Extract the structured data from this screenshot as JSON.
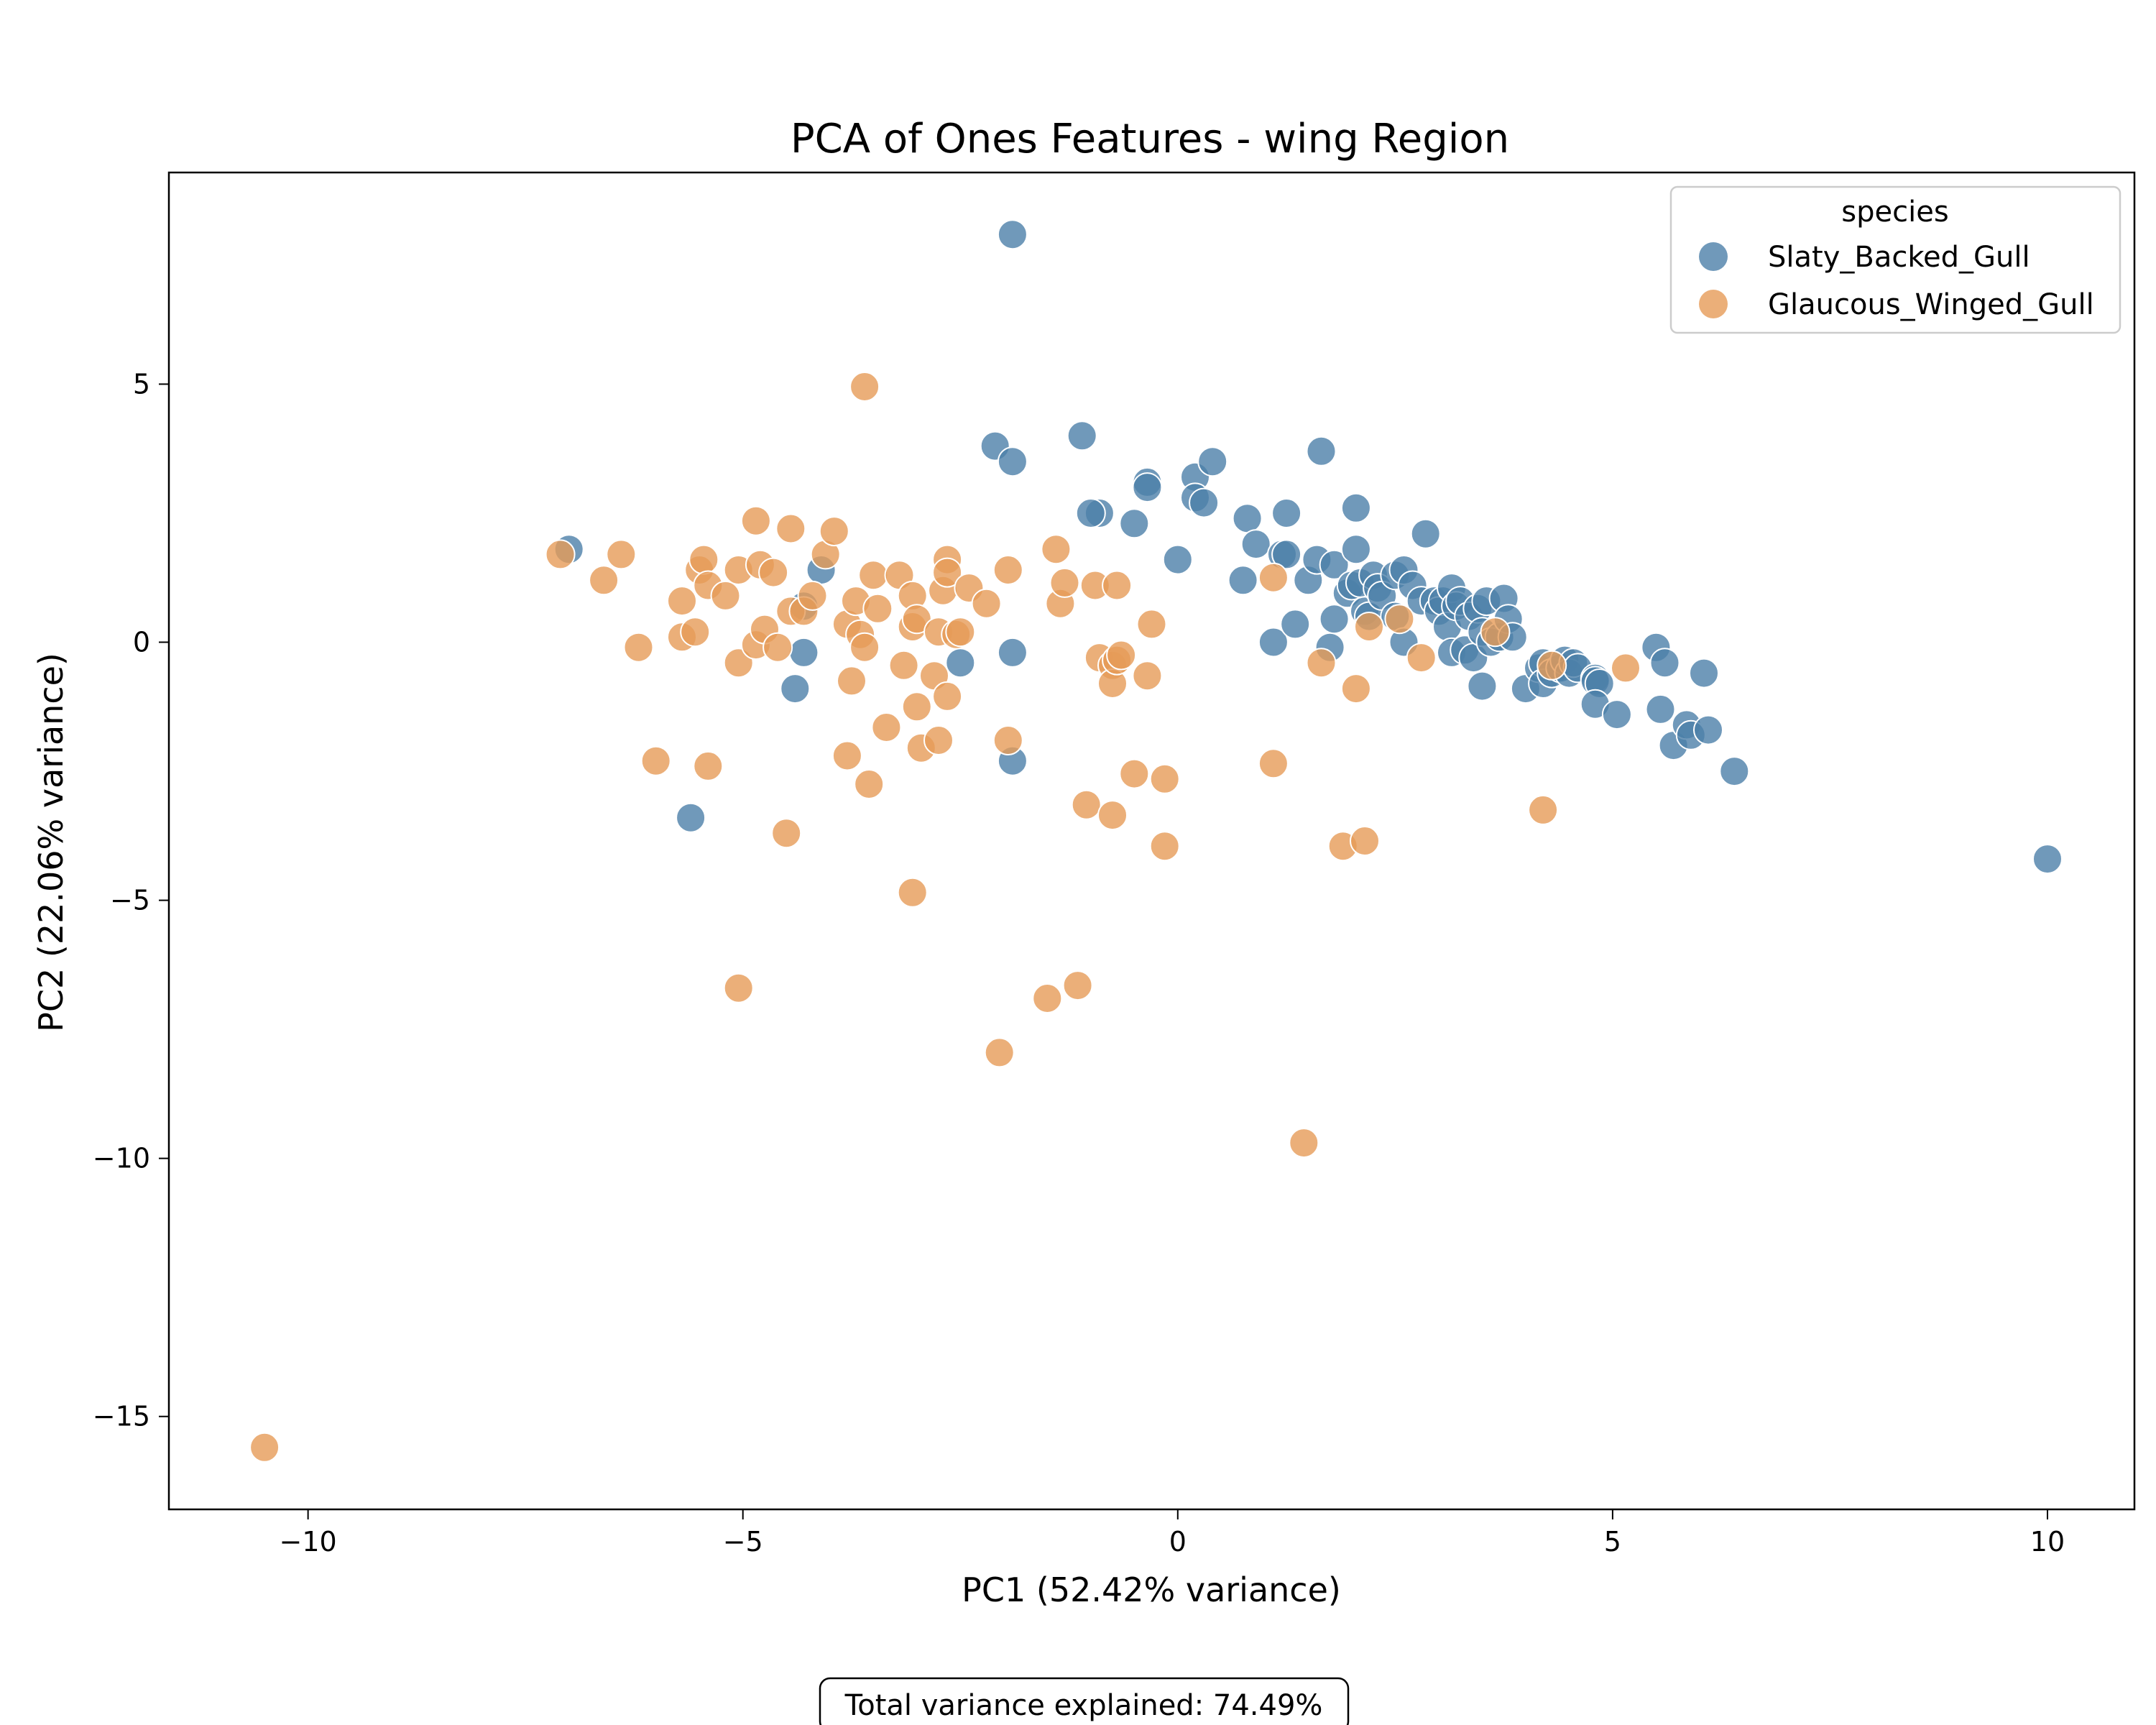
{
  "chart_data": {
    "type": "scatter",
    "title": "PCA of Ones Features - wing Region",
    "xlabel": "PC1 (52.42% variance)",
    "ylabel": "PC2 (22.06% variance)",
    "xlim": [
      -11.6,
      11.0
    ],
    "ylim": [
      -16.8,
      9.1
    ],
    "xticks": [
      -10,
      -5,
      0,
      5,
      10
    ],
    "yticks": [
      5,
      0,
      -5,
      -10,
      -15
    ],
    "xtick_labels": [
      "−10",
      "−5",
      "0",
      "5",
      "10"
    ],
    "ytick_labels": [
      "5",
      "0",
      "−5",
      "−10",
      "−15"
    ],
    "grid": false,
    "legend": {
      "title": "species",
      "placement": "top-right"
    },
    "annotation": "Total variance explained: 74.49%",
    "series": [
      {
        "name": "Slaty_Backed_Gull",
        "color": "#4c7fa9",
        "points": [
          [
            -1.9,
            7.9
          ],
          [
            -7.0,
            1.8
          ],
          [
            -5.6,
            -3.4
          ],
          [
            -4.1,
            1.4
          ],
          [
            -4.3,
            0.7
          ],
          [
            -4.3,
            -0.2
          ],
          [
            -4.4,
            -0.9
          ],
          [
            -2.1,
            3.8
          ],
          [
            -1.9,
            3.5
          ],
          [
            -1.9,
            -0.2
          ],
          [
            -1.9,
            -2.3
          ],
          [
            -2.5,
            -0.4
          ],
          [
            -1.1,
            4.0
          ],
          [
            -0.9,
            2.5
          ],
          [
            -1.0,
            2.5
          ],
          [
            -0.5,
            2.3
          ],
          [
            -0.35,
            3.1
          ],
          [
            -0.35,
            3.0
          ],
          [
            0.0,
            1.6
          ],
          [
            0.2,
            3.2
          ],
          [
            0.2,
            2.8
          ],
          [
            0.3,
            2.7
          ],
          [
            0.4,
            3.5
          ],
          [
            0.8,
            2.4
          ],
          [
            0.9,
            1.9
          ],
          [
            0.75,
            1.2
          ],
          [
            1.1,
            0.0
          ],
          [
            1.25,
            2.5
          ],
          [
            1.2,
            1.7
          ],
          [
            1.25,
            1.7
          ],
          [
            1.35,
            0.35
          ],
          [
            1.5,
            1.2
          ],
          [
            1.6,
            1.6
          ],
          [
            1.65,
            3.7
          ],
          [
            1.75,
            -0.1
          ],
          [
            1.8,
            1.5
          ],
          [
            1.8,
            0.45
          ],
          [
            1.95,
            0.95
          ],
          [
            2.05,
            2.6
          ],
          [
            2.05,
            1.8
          ],
          [
            2.0,
            1.1
          ],
          [
            2.1,
            1.15
          ],
          [
            2.15,
            0.6
          ],
          [
            2.2,
            0.5
          ],
          [
            2.25,
            1.3
          ],
          [
            2.3,
            1.05
          ],
          [
            2.35,
            0.9
          ],
          [
            2.5,
            1.3
          ],
          [
            2.6,
            1.4
          ],
          [
            2.5,
            0.5
          ],
          [
            2.6,
            0.0
          ],
          [
            2.7,
            1.1
          ],
          [
            2.85,
            2.1
          ],
          [
            2.8,
            0.8
          ],
          [
            2.95,
            0.8
          ],
          [
            3.0,
            0.6
          ],
          [
            3.05,
            0.8
          ],
          [
            3.1,
            0.3
          ],
          [
            3.15,
            1.05
          ],
          [
            3.15,
            -0.2
          ],
          [
            3.2,
            0.7
          ],
          [
            3.25,
            0.8
          ],
          [
            3.3,
            -0.15
          ],
          [
            3.35,
            0.5
          ],
          [
            3.45,
            0.65
          ],
          [
            3.4,
            -0.3
          ],
          [
            3.5,
            0.2
          ],
          [
            3.55,
            0.8
          ],
          [
            3.5,
            -0.85
          ],
          [
            3.6,
            0.0
          ],
          [
            3.7,
            0.1
          ],
          [
            3.75,
            0.85
          ],
          [
            3.8,
            0.45
          ],
          [
            3.85,
            0.1
          ],
          [
            4.0,
            -0.9
          ],
          [
            4.15,
            -0.5
          ],
          [
            4.2,
            -0.4
          ],
          [
            4.2,
            -0.8
          ],
          [
            4.3,
            -0.6
          ],
          [
            4.4,
            -0.5
          ],
          [
            4.45,
            -0.35
          ],
          [
            4.5,
            -0.6
          ],
          [
            4.55,
            -0.4
          ],
          [
            4.6,
            -0.5
          ],
          [
            4.8,
            -0.7
          ],
          [
            4.8,
            -0.75
          ],
          [
            4.85,
            -0.8
          ],
          [
            4.8,
            -1.2
          ],
          [
            5.05,
            -1.4
          ],
          [
            5.5,
            -0.1
          ],
          [
            5.55,
            -1.3
          ],
          [
            5.6,
            -0.4
          ],
          [
            5.7,
            -2.0
          ],
          [
            5.85,
            -1.6
          ],
          [
            5.9,
            -1.8
          ],
          [
            6.05,
            -0.6
          ],
          [
            6.1,
            -1.7
          ],
          [
            6.4,
            -2.5
          ],
          [
            10.0,
            -4.2
          ]
        ]
      },
      {
        "name": "Glaucous_Winged_Gull",
        "color": "#e69b58",
        "points": [
          [
            -10.5,
            -15.6
          ],
          [
            -7.1,
            1.7
          ],
          [
            -6.6,
            1.2
          ],
          [
            -6.4,
            1.7
          ],
          [
            -6.2,
            -0.1
          ],
          [
            -6.0,
            -2.3
          ],
          [
            -5.7,
            0.1
          ],
          [
            -5.7,
            0.8
          ],
          [
            -5.55,
            0.2
          ],
          [
            -5.5,
            1.4
          ],
          [
            -5.45,
            1.6
          ],
          [
            -5.4,
            1.1
          ],
          [
            -5.4,
            -2.4
          ],
          [
            -5.2,
            0.9
          ],
          [
            -5.05,
            1.4
          ],
          [
            -5.05,
            -0.4
          ],
          [
            -5.05,
            -6.7
          ],
          [
            -4.85,
            -0.05
          ],
          [
            -4.85,
            2.35
          ],
          [
            -4.8,
            1.5
          ],
          [
            -4.75,
            0.25
          ],
          [
            -4.65,
            1.35
          ],
          [
            -4.6,
            -0.1
          ],
          [
            -4.5,
            -3.7
          ],
          [
            -4.45,
            2.2
          ],
          [
            -4.45,
            0.6
          ],
          [
            -4.3,
            0.6
          ],
          [
            -4.2,
            0.9
          ],
          [
            -4.05,
            1.7
          ],
          [
            -3.95,
            2.15
          ],
          [
            -3.8,
            0.35
          ],
          [
            -3.75,
            -0.75
          ],
          [
            -3.8,
            -2.2
          ],
          [
            -3.7,
            0.8
          ],
          [
            -3.65,
            0.15
          ],
          [
            -3.6,
            -0.1
          ],
          [
            -3.6,
            4.95
          ],
          [
            -3.55,
            -2.75
          ],
          [
            -3.5,
            1.3
          ],
          [
            -3.45,
            0.65
          ],
          [
            -3.35,
            -1.65
          ],
          [
            -3.2,
            1.3
          ],
          [
            -3.15,
            -0.45
          ],
          [
            -3.05,
            0.3
          ],
          [
            -3.05,
            0.9
          ],
          [
            -3.0,
            -1.25
          ],
          [
            -3.0,
            0.45
          ],
          [
            -3.05,
            -4.85
          ],
          [
            -2.95,
            -2.05
          ],
          [
            -2.8,
            -0.65
          ],
          [
            -2.75,
            -1.9
          ],
          [
            -2.75,
            0.2
          ],
          [
            -2.7,
            1.0
          ],
          [
            -2.65,
            1.6
          ],
          [
            -2.65,
            1.35
          ],
          [
            -2.65,
            -1.05
          ],
          [
            -2.55,
            0.15
          ],
          [
            -2.5,
            0.2
          ],
          [
            -2.4,
            1.05
          ],
          [
            -2.2,
            0.75
          ],
          [
            -2.05,
            -7.95
          ],
          [
            -1.95,
            1.4
          ],
          [
            -1.95,
            -1.9
          ],
          [
            -1.4,
            1.8
          ],
          [
            -1.35,
            0.75
          ],
          [
            -1.3,
            1.15
          ],
          [
            -1.5,
            -6.9
          ],
          [
            -1.15,
            -6.65
          ],
          [
            -1.05,
            -3.15
          ],
          [
            -0.95,
            1.1
          ],
          [
            -0.9,
            -0.3
          ],
          [
            -0.75,
            -0.45
          ],
          [
            -0.75,
            -0.8
          ],
          [
            -0.7,
            -0.35
          ],
          [
            -0.65,
            -0.25
          ],
          [
            -0.7,
            1.1
          ],
          [
            -0.75,
            -3.35
          ],
          [
            -0.5,
            -2.55
          ],
          [
            -0.35,
            -0.65
          ],
          [
            -0.3,
            0.35
          ],
          [
            -0.15,
            -2.65
          ],
          [
            -0.15,
            -3.95
          ],
          [
            1.1,
            1.25
          ],
          [
            1.1,
            -2.35
          ],
          [
            1.45,
            -9.7
          ],
          [
            1.65,
            -0.4
          ],
          [
            1.9,
            -3.95
          ],
          [
            2.05,
            -0.9
          ],
          [
            2.15,
            -3.85
          ],
          [
            2.2,
            0.3
          ],
          [
            2.55,
            0.45
          ],
          [
            2.8,
            -0.3
          ],
          [
            3.65,
            0.2
          ],
          [
            4.2,
            -3.25
          ],
          [
            4.3,
            -0.45
          ],
          [
            5.15,
            -0.5
          ]
        ]
      }
    ]
  }
}
